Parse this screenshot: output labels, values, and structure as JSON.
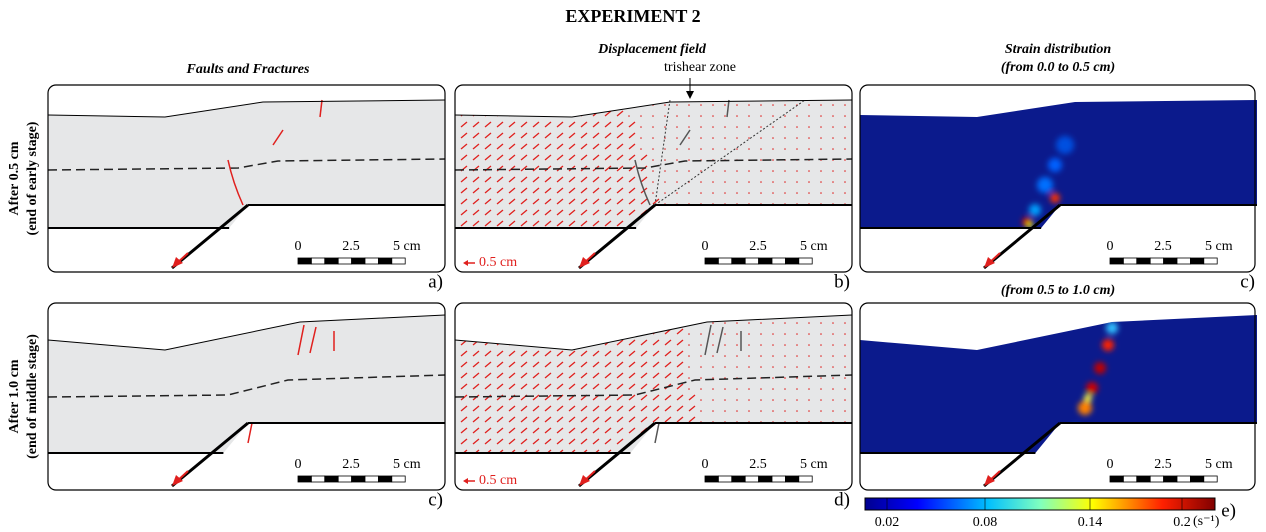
{
  "title": "EXPERIMENT 2",
  "column_titles": {
    "faults": "Faults and Fractures",
    "displacement": "Displacement field",
    "strain_1": "Strain distribution",
    "strain_2": "(from 0.0 to 0.5 cm)",
    "strain_3": "(from 0.5 to 1.0 cm)"
  },
  "trishear_label": "trishear zone",
  "rows": [
    {
      "label": "After 0.5 cm",
      "sublabel": "(end of early stage)",
      "panels": [
        "a)",
        "b)",
        "c)"
      ]
    },
    {
      "label": "After 1.0 cm",
      "sublabel": "(end of middle stage)",
      "panels": [
        "c)",
        "d)",
        "e)"
      ]
    }
  ],
  "scale_bar": {
    "labels": [
      "0",
      "2.5",
      "5 cm"
    ]
  },
  "displacement_legend": "0.5 cm",
  "colorbar": {
    "ticks": [
      "0.02",
      "0.08",
      "0.14",
      "0.2"
    ],
    "unit": "(s⁻¹)"
  }
}
